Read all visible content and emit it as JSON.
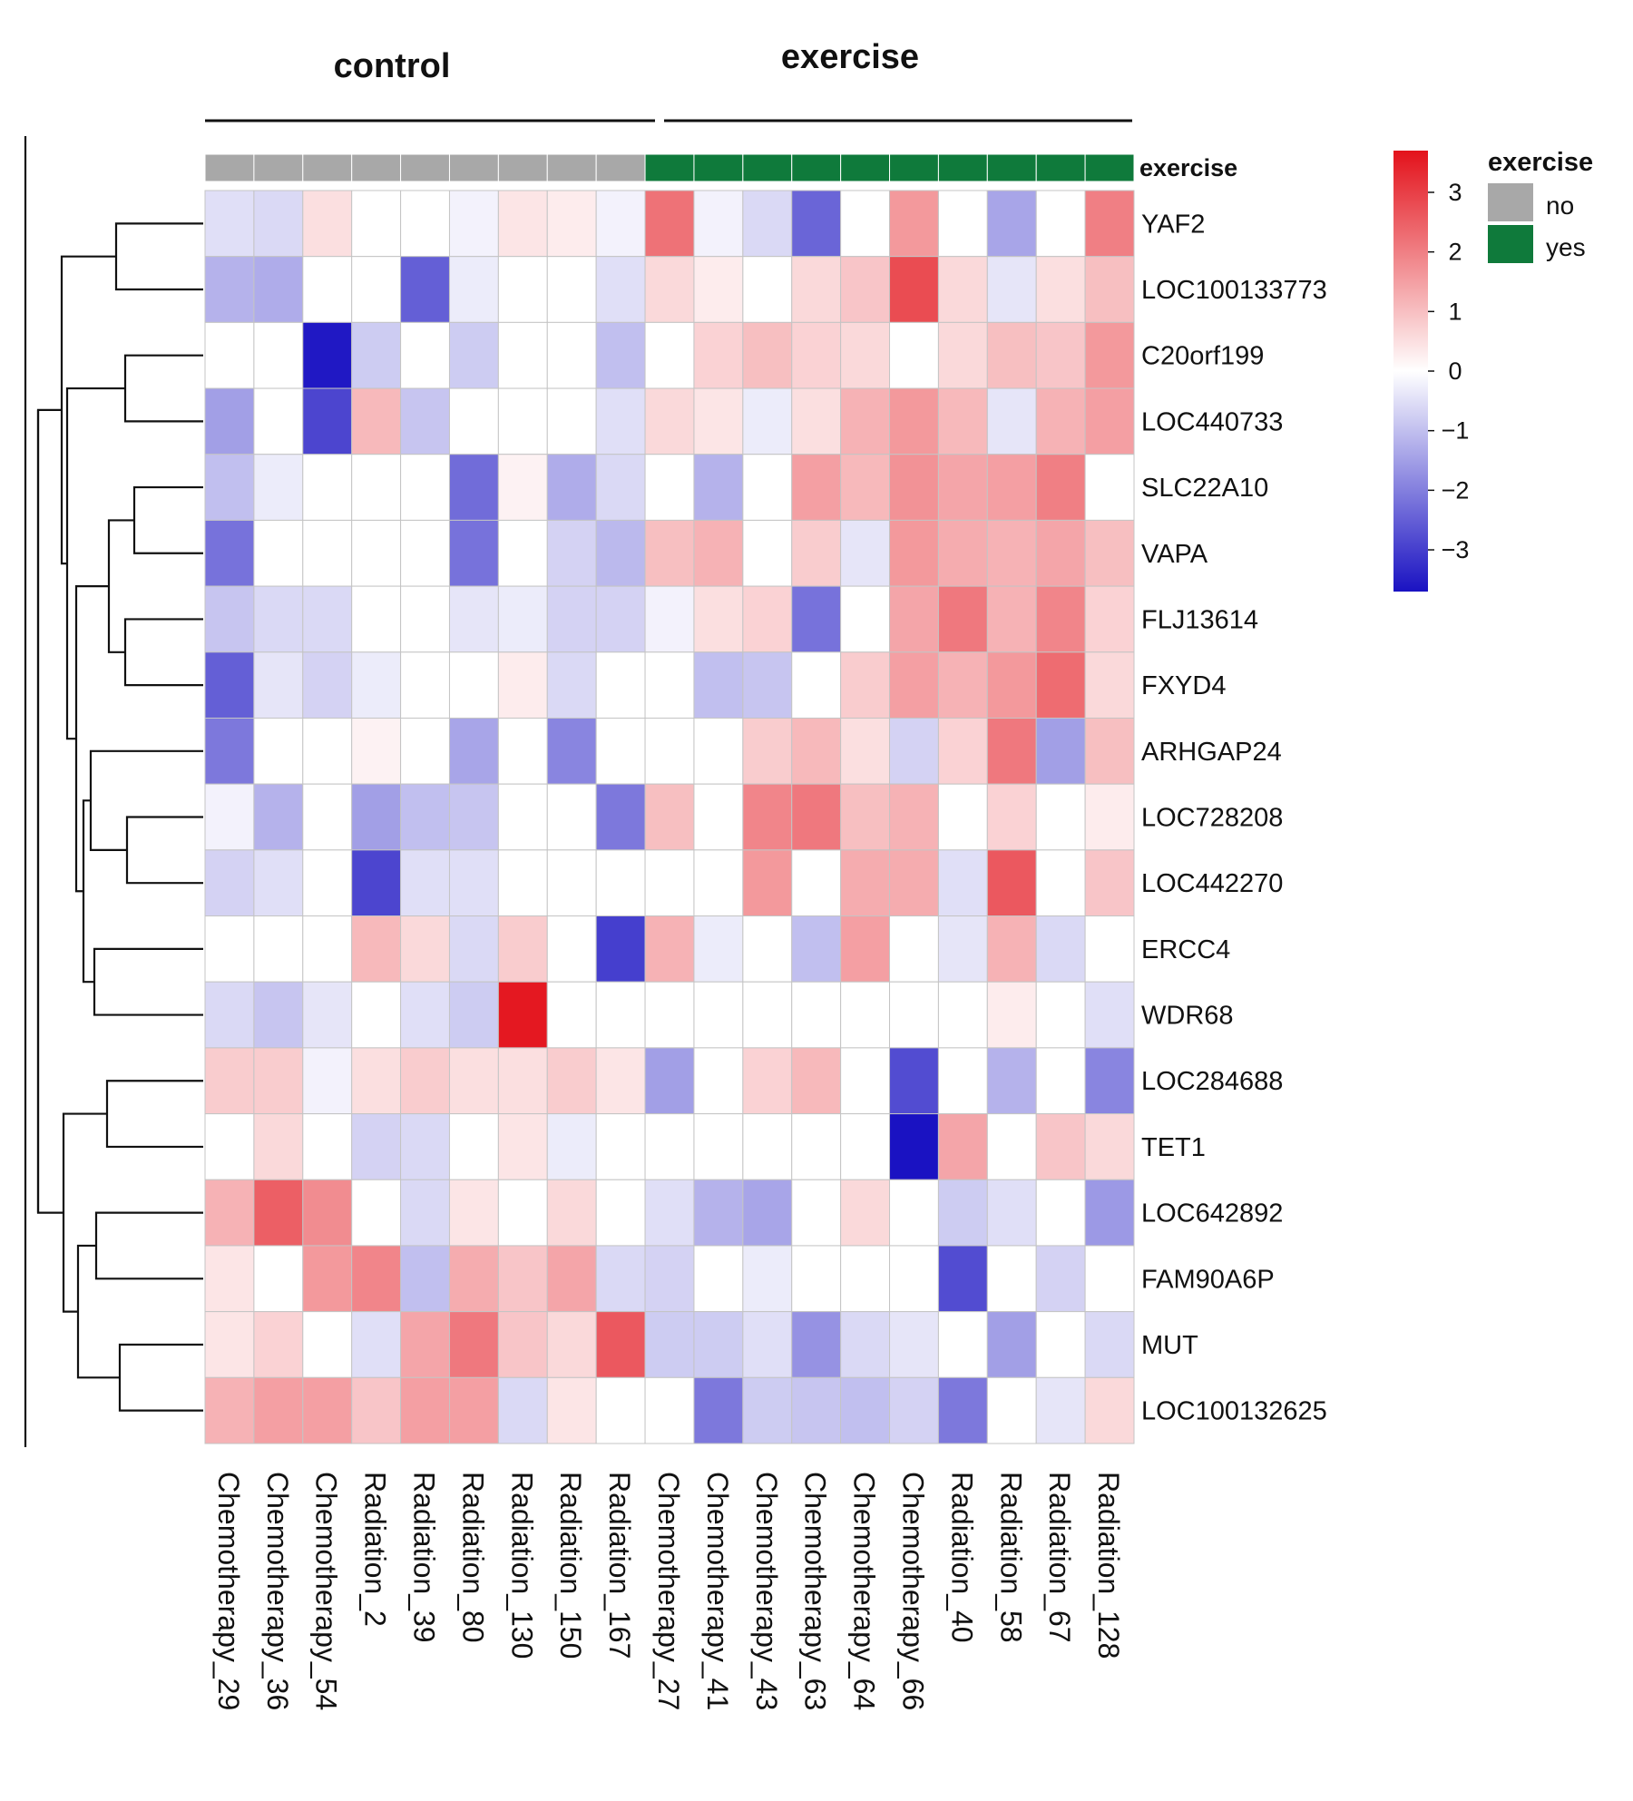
{
  "chart_data": {
    "type": "heatmap",
    "title": "",
    "groups": [
      {
        "name": "control",
        "label": "control",
        "n": 9
      },
      {
        "name": "exercise",
        "label": "exercise",
        "n": 10
      }
    ],
    "columns": [
      "Chemotherapy_29",
      "Chemotherapy_36",
      "Chemotherapy_54",
      "Radiation_2",
      "Radiation_39",
      "Radiation_80",
      "Radiation_130",
      "Radiation_150",
      "Radiation_167",
      "Chemotherapy_27",
      "Chemotherapy_41",
      "Chemotherapy_43",
      "Chemotherapy_63",
      "Chemotherapy_64",
      "Chemotherapy_66",
      "Radiation_40",
      "Radiation_58",
      "Radiation_67",
      "Radiation_128"
    ],
    "rows": [
      "YAF2",
      "LOC100133773",
      "C20orf199",
      "LOC440733",
      "SLC22A10",
      "VAPA",
      "FLJ13614",
      "FXYD4",
      "ARHGAP24",
      "LOC728208",
      "LOC442270",
      "ERCC4",
      "WDR68",
      "LOC284688",
      "TET1",
      "LOC642892",
      "FAM90A6P",
      "MUT",
      "LOC100132625"
    ],
    "values": [
      [
        -0.5,
        -0.6,
        0.5,
        0,
        0,
        -0.2,
        0.4,
        0.3,
        -0.2,
        2.2,
        -0.2,
        -0.6,
        -2.4,
        0,
        1.6,
        0,
        -1.4,
        0,
        2.0
      ],
      [
        -1.2,
        -1.3,
        0,
        0,
        -2.5,
        -0.3,
        0,
        0,
        -0.5,
        0.6,
        0.3,
        0,
        0.6,
        0.9,
        2.8,
        0.6,
        -0.4,
        0.5,
        1.0
      ],
      [
        0,
        0,
        -3.6,
        -0.8,
        0,
        -0.8,
        0,
        0,
        -1.0,
        0,
        0.7,
        1.0,
        0.7,
        0.6,
        0,
        0.6,
        1.0,
        0.9,
        1.6
      ],
      [
        -1.5,
        0,
        -2.9,
        1.1,
        -0.9,
        0,
        0,
        0,
        -0.5,
        0.6,
        0.4,
        -0.3,
        0.5,
        1.2,
        1.6,
        1.1,
        -0.4,
        1.2,
        1.5
      ],
      [
        -1.0,
        -0.3,
        0,
        0,
        0,
        -2.3,
        0.2,
        -1.3,
        -0.6,
        0,
        -1.2,
        0,
        1.5,
        1.1,
        1.7,
        1.4,
        1.5,
        2.0,
        0
      ],
      [
        -2.2,
        0,
        0,
        0,
        0,
        -2.2,
        0,
        -0.7,
        -1.1,
        1.0,
        1.2,
        0,
        0.8,
        -0.4,
        1.6,
        1.3,
        1.2,
        1.4,
        1.0
      ],
      [
        -0.9,
        -0.6,
        -0.6,
        0,
        0,
        -0.4,
        -0.3,
        -0.7,
        -0.7,
        -0.2,
        0.5,
        0.7,
        -2.2,
        0,
        1.4,
        2.1,
        1.2,
        1.9,
        0.7
      ],
      [
        -2.5,
        -0.4,
        -0.7,
        -0.3,
        0,
        0,
        0.3,
        -0.6,
        0,
        0,
        -1.0,
        -0.9,
        0,
        0.8,
        1.5,
        1.2,
        1.6,
        2.3,
        0.6
      ],
      [
        -2.1,
        0,
        0,
        0.2,
        0,
        -1.4,
        0,
        -1.9,
        0,
        0,
        0,
        0.8,
        1.1,
        0.5,
        -0.7,
        0.7,
        2.1,
        -1.5,
        1.0
      ],
      [
        -0.2,
        -1.2,
        0,
        -1.5,
        -1.0,
        -0.9,
        0,
        0,
        -2.1,
        1.0,
        0,
        1.9,
        2.1,
        1.0,
        1.2,
        0,
        0.7,
        0,
        0.3
      ],
      [
        -0.7,
        -0.5,
        0,
        -2.9,
        -0.5,
        -0.5,
        0,
        0,
        0,
        0,
        0,
        1.6,
        0,
        1.3,
        1.3,
        -0.5,
        2.6,
        0,
        0.9
      ],
      [
        0,
        0,
        0,
        1.1,
        0.6,
        -0.6,
        0.8,
        0,
        -3.0,
        1.2,
        -0.3,
        0,
        -1.0,
        1.5,
        0,
        -0.4,
        1.2,
        -0.6,
        0
      ],
      [
        -0.6,
        -0.9,
        -0.4,
        0,
        -0.5,
        -0.8,
        3.6,
        0,
        0,
        0,
        0,
        0,
        0,
        0,
        0,
        0,
        0.3,
        0,
        -0.5
      ],
      [
        0.8,
        0.8,
        -0.2,
        0.5,
        0.8,
        0.5,
        0.5,
        0.8,
        0.4,
        -1.5,
        0,
        0.7,
        1.1,
        0,
        -2.8,
        0,
        -1.2,
        0,
        -1.9
      ],
      [
        0,
        0.6,
        0,
        -0.7,
        -0.6,
        0,
        0.4,
        -0.3,
        0,
        0,
        0,
        0,
        0,
        0,
        -3.7,
        1.4,
        0,
        0.9,
        0.6
      ],
      [
        1.2,
        2.5,
        1.8,
        0,
        -0.6,
        0.4,
        0,
        0.6,
        0,
        -0.5,
        -1.2,
        -1.4,
        0,
        0.6,
        0,
        -0.8,
        -0.5,
        0,
        -1.6
      ],
      [
        0.4,
        0,
        1.6,
        1.9,
        -1.0,
        1.3,
        0.9,
        1.4,
        -0.6,
        -0.7,
        0,
        -0.3,
        0,
        0,
        0,
        -2.8,
        0,
        -0.7,
        0
      ],
      [
        0.4,
        0.7,
        0,
        -0.5,
        1.4,
        2.1,
        0.9,
        0.6,
        2.6,
        -0.8,
        -0.8,
        -0.5,
        -1.7,
        -0.6,
        -0.4,
        0,
        -1.5,
        0,
        -0.6
      ],
      [
        1.2,
        1.5,
        1.5,
        0.9,
        1.5,
        1.5,
        -0.6,
        0.4,
        0,
        0,
        -2.1,
        -0.8,
        -0.9,
        -1.0,
        -0.7,
        -2.1,
        0,
        -0.4,
        0.6
      ]
    ],
    "annotation": {
      "name": "exercise",
      "values": [
        "no",
        "no",
        "no",
        "no",
        "no",
        "no",
        "no",
        "no",
        "no",
        "yes",
        "yes",
        "yes",
        "yes",
        "yes",
        "yes",
        "yes",
        "yes",
        "yes",
        "yes"
      ],
      "colors": {
        "no": "#a8a8a8",
        "yes": "#0f7a3b"
      }
    },
    "color_scale": {
      "min": -3.7,
      "max": 3.7,
      "low": "#1a12c2",
      "mid": "#ffffff",
      "high": "#e3121b",
      "ticks": [
        3,
        2,
        1,
        0,
        -1,
        -2,
        -3
      ]
    },
    "legend": {
      "title": "exercise",
      "items": [
        {
          "label": "no",
          "color": "#a8a8a8"
        },
        {
          "label": "yes",
          "color": "#0f7a3b"
        }
      ]
    },
    "dendrogram": "rows clustered (hierarchical)"
  }
}
